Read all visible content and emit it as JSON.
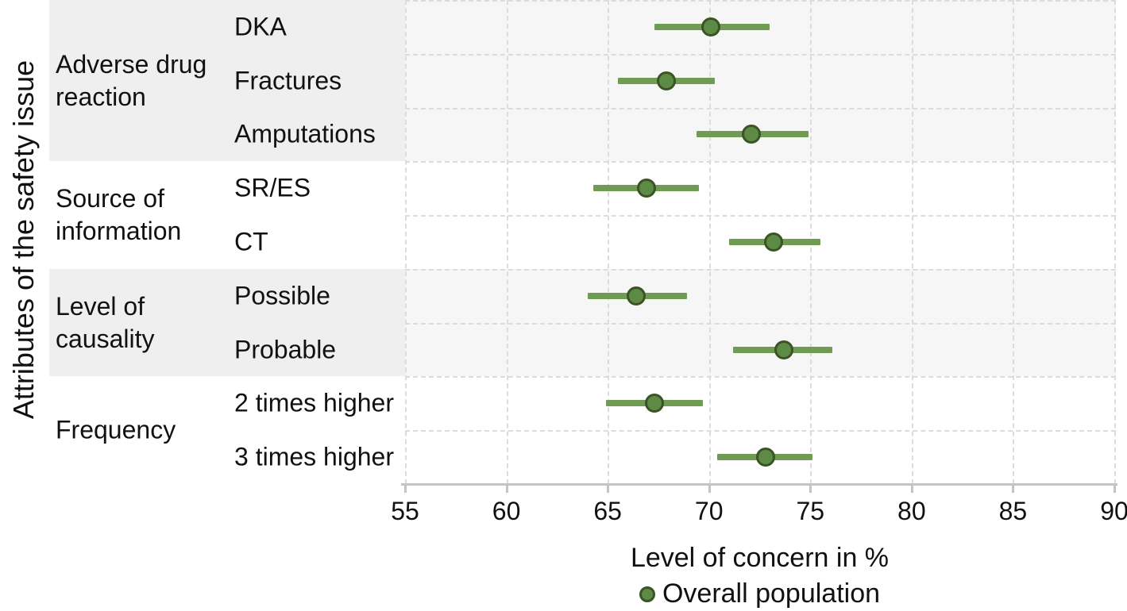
{
  "chart_data": {
    "type": "scatter",
    "subtype": "forest-plot-dot-with-ci",
    "orientation": "horizontal",
    "x_axis": {
      "label": "Level of concern in %",
      "min": 55,
      "max": 90,
      "ticks": [
        55,
        60,
        65,
        70,
        75,
        80,
        85,
        90
      ],
      "grid": "dashed"
    },
    "y_axis": {
      "label": "Attributes of the safety issue"
    },
    "legend": {
      "label": "Overall population",
      "position": "bottom-center"
    },
    "groups": [
      {
        "label": "Adverse drug reaction",
        "label_lines": "Adverse drug\nreaction",
        "shaded": true,
        "items": [
          {
            "label": "DKA",
            "value": 70.1,
            "ci_low": 67.3,
            "ci_high": 73.0
          },
          {
            "label": "Fractures",
            "value": 67.9,
            "ci_low": 65.5,
            "ci_high": 70.3
          },
          {
            "label": "Amputations",
            "value": 72.1,
            "ci_low": 69.4,
            "ci_high": 74.9
          }
        ]
      },
      {
        "label": "Source of information",
        "label_lines": "Source of\ninformation",
        "shaded": false,
        "items": [
          {
            "label": "SR/ES",
            "value": 66.9,
            "ci_low": 64.3,
            "ci_high": 69.5
          },
          {
            "label": "CT",
            "value": 73.2,
            "ci_low": 71.0,
            "ci_high": 75.5
          }
        ]
      },
      {
        "label": "Level of causality",
        "label_lines": "Level of\ncausality",
        "shaded": true,
        "items": [
          {
            "label": "Possible",
            "value": 66.4,
            "ci_low": 64.0,
            "ci_high": 68.9
          },
          {
            "label": "Probable",
            "value": 73.7,
            "ci_low": 71.2,
            "ci_high": 76.1
          }
        ]
      },
      {
        "label": "Frequency",
        "label_lines": "Frequency",
        "shaded": false,
        "items": [
          {
            "label": "2 times higher",
            "value": 67.3,
            "ci_low": 64.9,
            "ci_high": 69.7
          },
          {
            "label": "3 times higher",
            "value": 72.8,
            "ci_low": 70.4,
            "ci_high": 75.1
          }
        ]
      }
    ],
    "colors": {
      "marker_fill": "#5d8a44",
      "marker_border": "#3a5426",
      "ci_line": "#6f9b52",
      "band_label_area": "#efefef",
      "band_plot_area": "#f6f6f6",
      "gridline": "#dcdcdc",
      "axis": "#c4c4c4",
      "text": "#111111"
    }
  }
}
